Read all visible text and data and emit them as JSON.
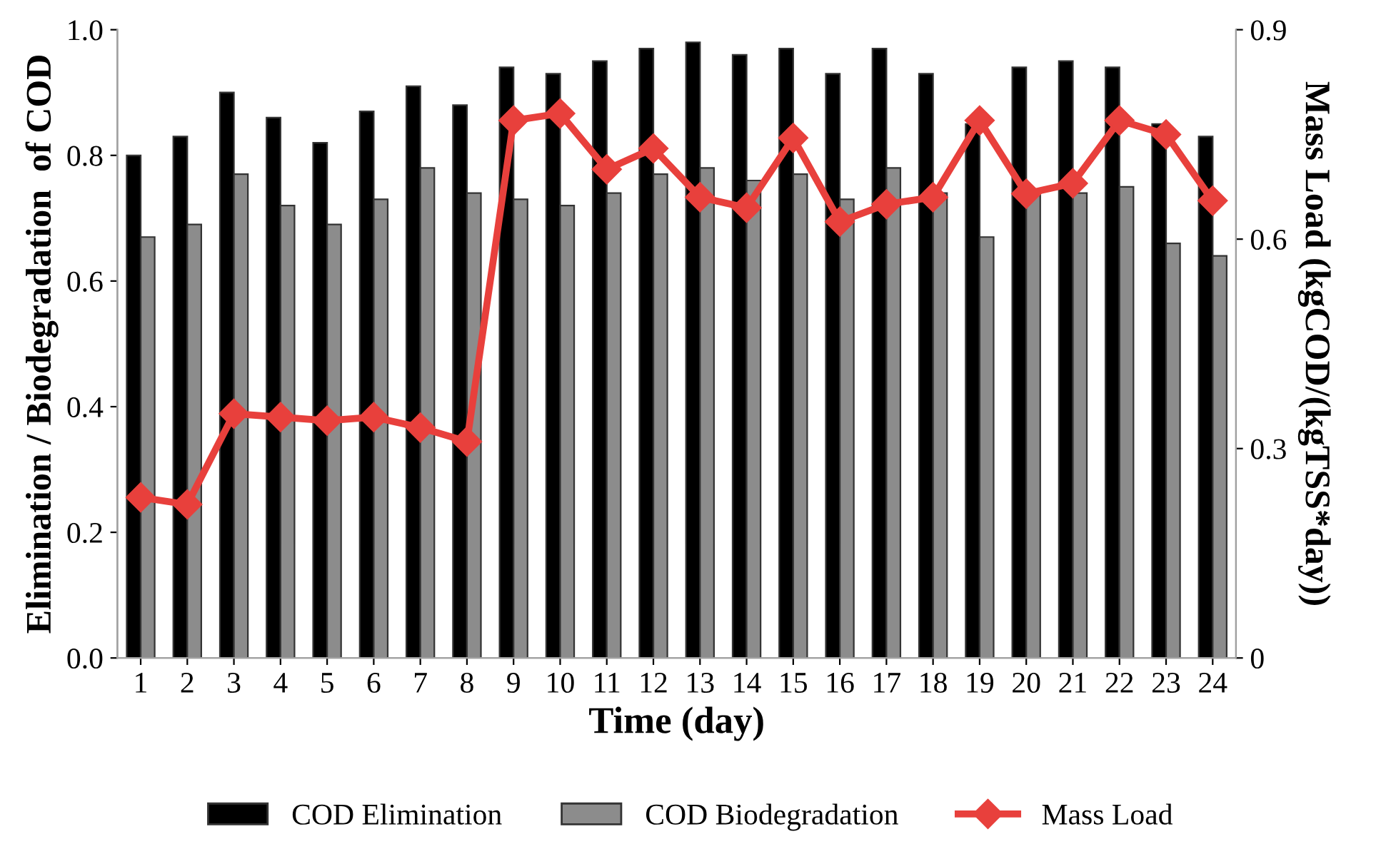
{
  "chart_data": {
    "type": "bar",
    "xlabel": "Time (day)",
    "ylabel": "Elimination / Biodegradation  of COD",
    "y2label": "Mass Load (kgCOD/(kgTSS*day))",
    "categories": [
      "1",
      "2",
      "3",
      "4",
      "5",
      "6",
      "7",
      "8",
      "9",
      "10",
      "11",
      "12",
      "13",
      "14",
      "15",
      "16",
      "17",
      "18",
      "19",
      "20",
      "21",
      "22",
      "23",
      "24"
    ],
    "series": [
      {
        "name": "COD Elimination",
        "color": "#000000",
        "values": [
          0.8,
          0.83,
          0.9,
          0.86,
          0.82,
          0.87,
          0.91,
          0.88,
          0.94,
          0.93,
          0.95,
          0.97,
          0.98,
          0.96,
          0.97,
          0.93,
          0.97,
          0.93,
          0.85,
          0.94,
          0.95,
          0.94,
          0.85,
          0.83
        ]
      },
      {
        "name": "COD Biodegradation",
        "color": "#8c8c8c",
        "values": [
          0.67,
          0.69,
          0.77,
          0.72,
          0.69,
          0.73,
          0.78,
          0.74,
          0.73,
          0.72,
          0.74,
          0.77,
          0.78,
          0.76,
          0.77,
          0.73,
          0.78,
          0.74,
          0.67,
          0.74,
          0.74,
          0.75,
          0.66,
          0.64
        ]
      },
      {
        "name": "Mass Load",
        "color": "#e8403c",
        "type": "line",
        "axis": "y2",
        "marker": "diamond",
        "values": [
          0.23,
          0.22,
          0.35,
          0.345,
          0.34,
          0.345,
          0.33,
          0.31,
          0.77,
          0.78,
          0.7,
          0.73,
          0.66,
          0.645,
          0.745,
          0.625,
          0.65,
          0.66,
          0.77,
          0.665,
          0.68,
          0.77,
          0.75,
          0.655
        ]
      }
    ],
    "ylim": [
      0,
      1.0
    ],
    "yticks": [
      {
        "value": 0,
        "label": "0.0"
      },
      {
        "value": 0.2,
        "label": "0.2"
      },
      {
        "value": 0.4,
        "label": "0.4"
      },
      {
        "value": 0.6,
        "label": "0.6"
      },
      {
        "value": 0.8,
        "label": "0.8"
      },
      {
        "value": 1.0,
        "label": "1.0"
      }
    ],
    "y2lim": [
      0,
      0.9
    ],
    "y2ticks": [
      0,
      0.3,
      0.6,
      0.9
    ],
    "legend": "bottom",
    "grid": false
  }
}
